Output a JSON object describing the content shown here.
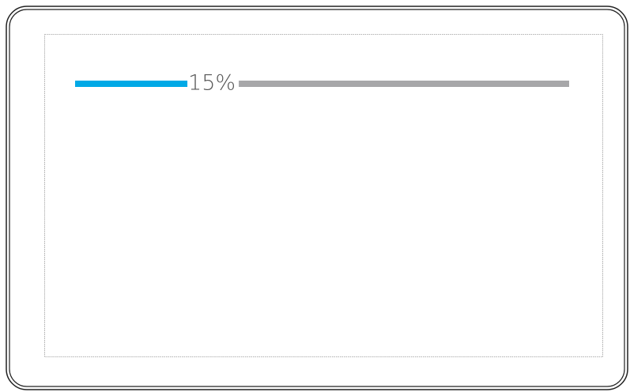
{
  "progress": {
    "value": 15,
    "label": "15%"
  }
}
